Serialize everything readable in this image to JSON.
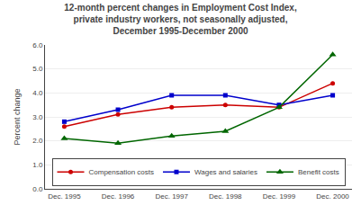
{
  "chart_data": {
    "type": "line",
    "title": "12-month percent changes in Employment Cost Index,\nprivate industry workers, not seasonally adjusted,\nDecember 1995-December 2000",
    "ylabel": "Percent change",
    "categories": [
      "Dec. 1995",
      "Dec. 1996",
      "Dec. 1997",
      "Dec. 1998",
      "Dec. 1999",
      "Dec. 2000"
    ],
    "series": [
      {
        "name": "Compensation costs",
        "color": "#cc0000",
        "marker": "circle",
        "values": [
          2.6,
          3.1,
          3.4,
          3.5,
          3.4,
          4.4
        ]
      },
      {
        "name": "Wages and salaries",
        "color": "#0000cc",
        "marker": "square",
        "values": [
          2.8,
          3.3,
          3.9,
          3.9,
          3.5,
          3.9
        ]
      },
      {
        "name": "Benefit costs",
        "color": "#006600",
        "marker": "triangle-up",
        "values": [
          2.1,
          1.9,
          2.2,
          2.4,
          3.4,
          5.6
        ]
      }
    ],
    "ylim": [
      0.0,
      6.0
    ],
    "yticks": [
      {
        "value": 0,
        "label": "0.0"
      },
      {
        "value": 1,
        "label": "1.0"
      },
      {
        "value": 2,
        "label": "2.0"
      },
      {
        "value": 3,
        "label": "3.0"
      },
      {
        "value": 4,
        "label": "4.0"
      },
      {
        "value": 5,
        "label": "5.0"
      },
      {
        "value": 6,
        "label": "6.0"
      }
    ],
    "grid": "y",
    "legend": "bottom"
  }
}
